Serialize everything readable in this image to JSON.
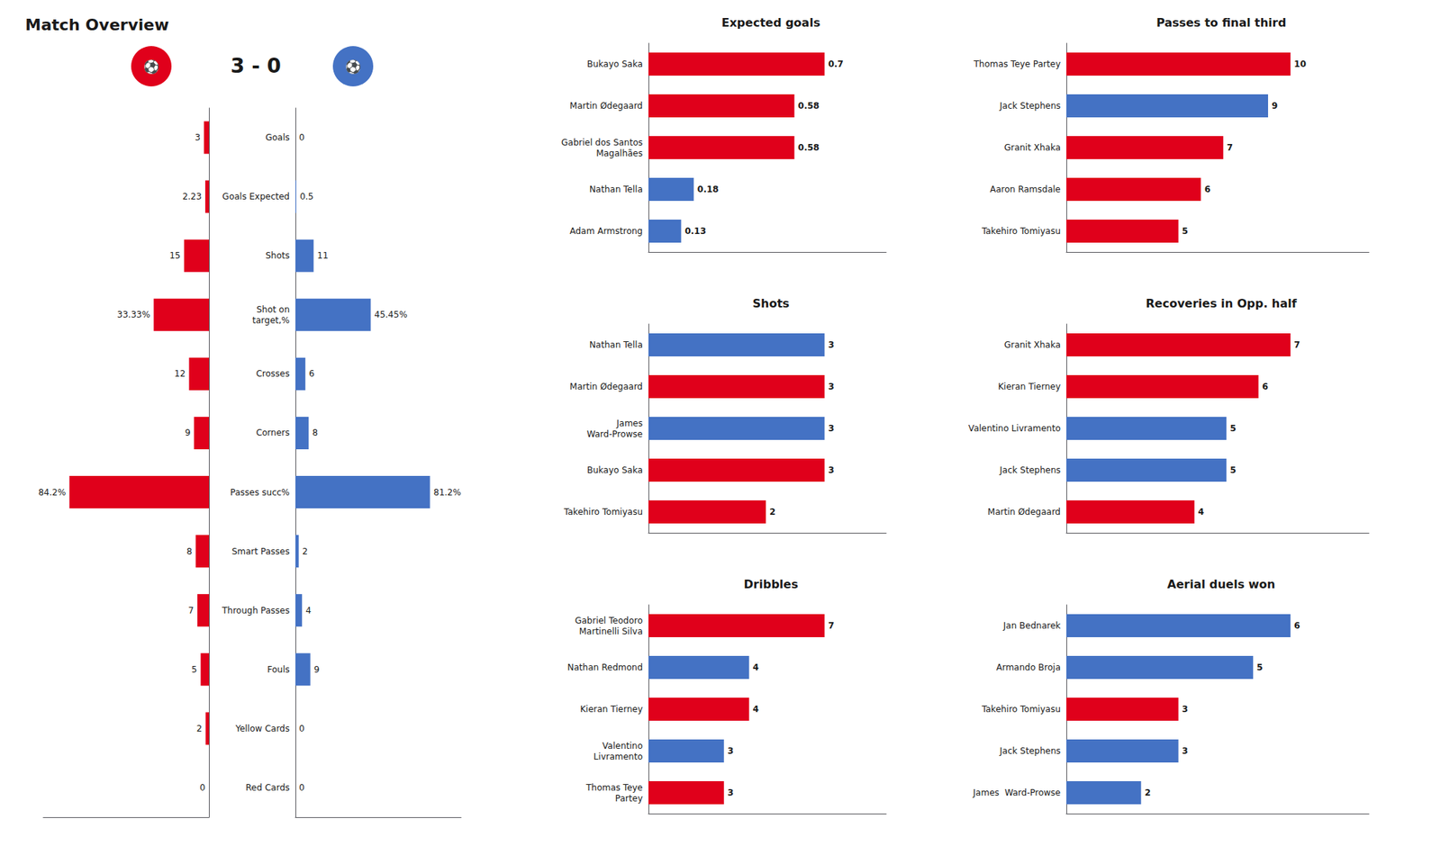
{
  "chart_data": [
    {
      "type": "bar",
      "orientation": "horizontal",
      "title": "Match Overview",
      "subtitle": "3 - 0",
      "annotations": [
        "⚽",
        "⚽"
      ],
      "categories": [
        "Goals",
        "Goals Expected",
        "Shots",
        "Shot on\ntarget,%",
        "Crosses",
        "Corners",
        "Passes succ%",
        "Smart Passes",
        "Through Passes",
        "Fouls",
        "Yellow Cards",
        "Red Cards"
      ],
      "series": [
        {
          "color": "#E0001B",
          "values": [
            3,
            2.23,
            15,
            33.33,
            12,
            9,
            84.2,
            8,
            7,
            5,
            2,
            0
          ],
          "value_labels": [
            "3",
            "2.23",
            "15",
            "33.33%",
            "12",
            "9",
            "84.2%",
            "8",
            "7",
            "5",
            "2",
            "0"
          ]
        },
        {
          "color": "#4472C4",
          "values": [
            0,
            0.5,
            11,
            45.45,
            6,
            8,
            81.2,
            2,
            4,
            9,
            0,
            0
          ],
          "value_labels": [
            "0",
            "0.5",
            "11",
            "45.45%",
            "6",
            "8",
            "81.2%",
            "2",
            "4",
            "9",
            "0",
            "0"
          ]
        }
      ],
      "xlim": [
        0,
        100
      ],
      "grid": false,
      "data_labels": true,
      "tick_labels": "y"
    },
    {
      "type": "bar",
      "orientation": "horizontal",
      "title": "Expected goals",
      "categories": [
        "Bukayo Saka",
        "Martin Ødegaard",
        "Gabriel dos Santos\nMagalhães",
        "Nathan Tella",
        "Adam Armstrong"
      ],
      "values": [
        0.7,
        0.58,
        0.58,
        0.18,
        0.13
      ],
      "colors": [
        "#E0001B",
        "#E0001B",
        "#E0001B",
        "#4472C4",
        "#4472C4"
      ],
      "xlim": [
        0,
        0.945
      ],
      "grid": false,
      "data_labels": true,
      "tick_labels": "y"
    },
    {
      "type": "bar",
      "orientation": "horizontal",
      "title": "Shots",
      "categories": [
        "Nathan Tella",
        "Martin Ødegaard",
        "James\nWard-Prowse",
        "Bukayo Saka",
        "Takehiro Tomiyasu"
      ],
      "values": [
        3,
        3,
        3,
        3,
        2
      ],
      "colors": [
        "#4472C4",
        "#E0001B",
        "#4472C4",
        "#E0001B",
        "#E0001B"
      ],
      "xlim": [
        0,
        4.05
      ],
      "grid": false,
      "data_labels": true,
      "tick_labels": "y"
    },
    {
      "type": "bar",
      "orientation": "horizontal",
      "title": "Dribbles",
      "categories": [
        "Gabriel Teodoro\nMartinelli Silva",
        "Nathan Redmond",
        "Kieran Tierney",
        "Valentino\nLivramento",
        "Thomas Teye\nPartey"
      ],
      "values": [
        7,
        4,
        4,
        3,
        3
      ],
      "colors": [
        "#E0001B",
        "#4472C4",
        "#E0001B",
        "#4472C4",
        "#E0001B"
      ],
      "xlim": [
        0,
        9.45
      ],
      "grid": false,
      "data_labels": true,
      "tick_labels": "y"
    },
    {
      "type": "bar",
      "orientation": "horizontal",
      "title": "Passes to final third",
      "categories": [
        "Thomas Teye Partey",
        "Jack Stephens",
        "Granit Xhaka",
        "Aaron Ramsdale",
        "Takehiro Tomiyasu"
      ],
      "values": [
        10,
        9,
        7,
        6,
        5
      ],
      "colors": [
        "#E0001B",
        "#4472C4",
        "#E0001B",
        "#E0001B",
        "#E0001B"
      ],
      "xlim": [
        0,
        13.5
      ],
      "grid": false,
      "data_labels": true,
      "tick_labels": "y"
    },
    {
      "type": "bar",
      "orientation": "horizontal",
      "title": "Recoveries in Opp. half",
      "categories": [
        "Granit Xhaka",
        "Kieran Tierney",
        "Valentino Livramento",
        "Jack Stephens",
        "Martin Ødegaard"
      ],
      "values": [
        7,
        6,
        5,
        5,
        4
      ],
      "colors": [
        "#E0001B",
        "#E0001B",
        "#4472C4",
        "#4472C4",
        "#E0001B"
      ],
      "xlim": [
        0,
        9.45
      ],
      "grid": false,
      "data_labels": true,
      "tick_labels": "y"
    },
    {
      "type": "bar",
      "orientation": "horizontal",
      "title": "Aerial duels won",
      "categories": [
        "Jan Bednarek",
        "Armando Broja",
        "Takehiro Tomiyasu",
        "Jack Stephens",
        "James  Ward-Prowse"
      ],
      "values": [
        6,
        5,
        3,
        3,
        2
      ],
      "colors": [
        "#4472C4",
        "#4472C4",
        "#E0001B",
        "#4472C4",
        "#4472C4"
      ],
      "xlim": [
        0,
        8.1
      ],
      "grid": false,
      "data_labels": true,
      "tick_labels": "y"
    }
  ]
}
